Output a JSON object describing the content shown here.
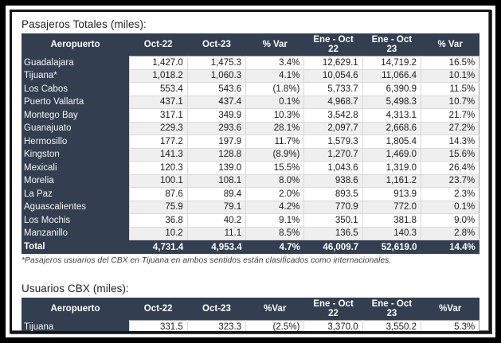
{
  "colors": {
    "header_bg": "#333F50",
    "row_alt_bg": "#EFEFEF",
    "frame_outer": "#000000",
    "grid_line": "#D9D9D9"
  },
  "table1": {
    "title": "Pasajeros Totales (miles):",
    "columns": [
      "Aeropuerto",
      "Oct-22",
      "Oct-23",
      "% Var",
      "Ene - Oct 22",
      "Ene - Oct 23",
      "% Var"
    ],
    "rows": [
      [
        "Guadalajara",
        "1,427.0",
        "1,475.3",
        "3.4%",
        "12,629.1",
        "14,719.2",
        "16.5%"
      ],
      [
        "Tijuana*",
        "1,018.2",
        "1,060.3",
        "4.1%",
        "10,054.6",
        "11,066.4",
        "10.1%"
      ],
      [
        "Los Cabos",
        "553.4",
        "543.6",
        "(1.8%)",
        "5,733.7",
        "6,390.9",
        "11.5%"
      ],
      [
        "Puerto Vallarta",
        "437.1",
        "437.4",
        "0.1%",
        "4,968.7",
        "5,498.3",
        "10.7%"
      ],
      [
        "Montego Bay",
        "317.1",
        "349.9",
        "10.3%",
        "3,542.8",
        "4,313.1",
        "21.7%"
      ],
      [
        "Guanajuato",
        "229.3",
        "293.6",
        "28.1%",
        "2,097.7",
        "2,668.6",
        "27.2%"
      ],
      [
        "Hermosillo",
        "177.2",
        "197.9",
        "11.7%",
        "1,579.3",
        "1,805.4",
        "14.3%"
      ],
      [
        "Kingston",
        "141.3",
        "128.8",
        "(8.9%)",
        "1,270.7",
        "1,469.0",
        "15.6%"
      ],
      [
        "Mexicali",
        "120.3",
        "139.0",
        "15.5%",
        "1,043.6",
        "1,319.0",
        "26.4%"
      ],
      [
        "Morelia",
        "100.1",
        "108.1",
        "8.0%",
        "938.6",
        "1,161.2",
        "23.7%"
      ],
      [
        "La Paz",
        "87.6",
        "89.4",
        "2.0%",
        "893.5",
        "913.9",
        "2.3%"
      ],
      [
        "Aguascalientes",
        "75.9",
        "79.1",
        "4.2%",
        "770.9",
        "772.0",
        "0.1%"
      ],
      [
        "Los Mochis",
        "36.8",
        "40.2",
        "9.1%",
        "350.1",
        "381.8",
        "9.0%"
      ],
      [
        "Manzanillo",
        "10.2",
        "11.1",
        "8.5%",
        "136.5",
        "140.3",
        "2.8%"
      ]
    ],
    "total": [
      "Total",
      "4,731.4",
      "4,953.4",
      "4.7%",
      "46,009.7",
      "52,619.0",
      "14.4%"
    ],
    "footnote": "*Pasajeros usuarios del CBX en Tijuana en ambos sentidos están clasificados como internacionales."
  },
  "table2": {
    "title": "Usuarios CBX (miles):",
    "columns": [
      "Aeropuerto",
      "Oct-22",
      "Oct-23",
      "%Var",
      "Ene - Oct 22",
      "Ene - Oct 23",
      "%Var"
    ],
    "rows": [
      [
        "Tijuana",
        "331.5",
        "323.3",
        "(2.5%)",
        "3,370.0",
        "3,550.2",
        "5.3%"
      ]
    ]
  }
}
